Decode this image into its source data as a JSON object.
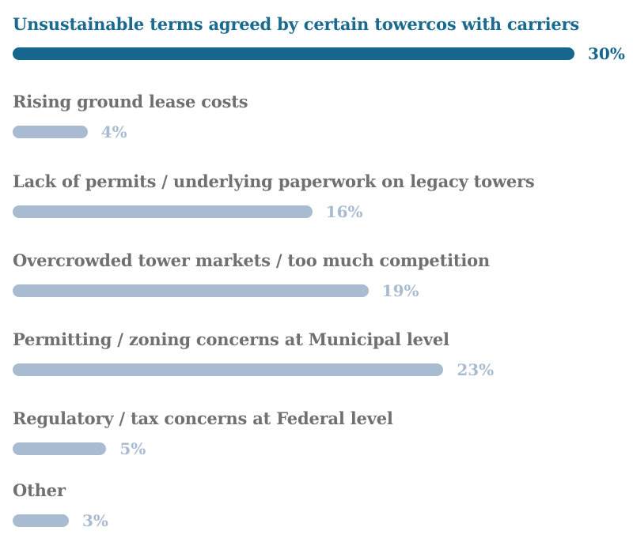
{
  "chart_data": {
    "type": "bar",
    "orientation": "horizontal",
    "categories": [
      "Unsustainable terms agreed by certain towercos with carriers",
      "Rising ground lease costs",
      "Lack of permits / underlying paperwork on legacy towers",
      "Overcrowded tower markets / too much competition",
      "Permitting / zoning concerns at Municipal level",
      "Regulatory / tax concerns at Federal level",
      "Other"
    ],
    "values": [
      30,
      4,
      16,
      19,
      23,
      5,
      3
    ],
    "value_labels": [
      "30%",
      "4%",
      "16%",
      "19%",
      "23%",
      "5%",
      "3%"
    ],
    "unit": "%",
    "highlighted_index": 0,
    "xlim": [
      0,
      30
    ],
    "title": "",
    "xlabel": "",
    "ylabel": ""
  },
  "colors": {
    "highlight": "#16678e",
    "highlight_text": "#1a6a90",
    "bar": "#a9bbd0",
    "label": "#707070"
  }
}
